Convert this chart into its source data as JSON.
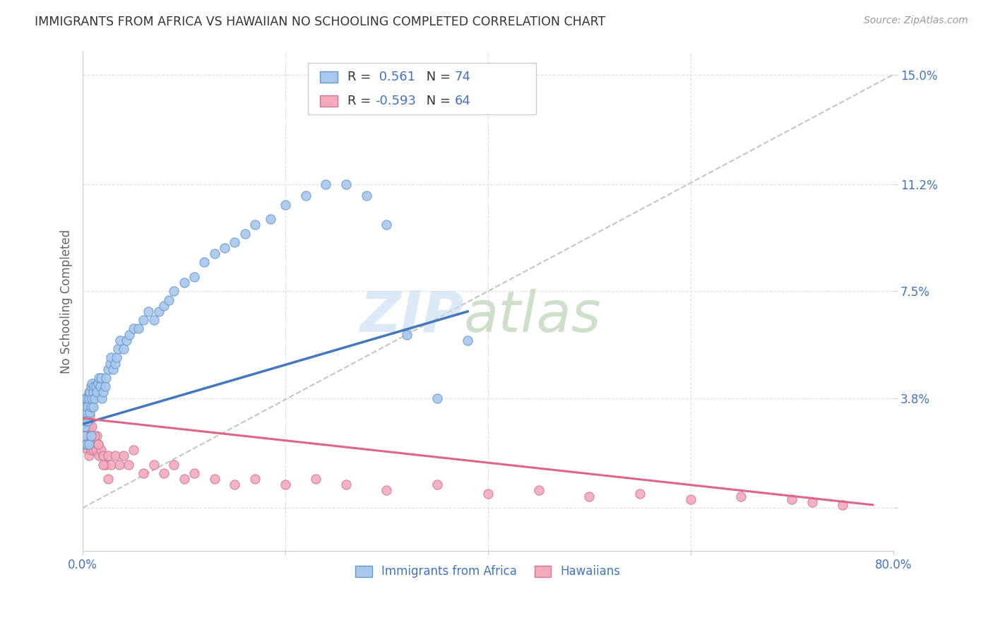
{
  "title": "IMMIGRANTS FROM AFRICA VS HAWAIIAN NO SCHOOLING COMPLETED CORRELATION CHART",
  "source": "Source: ZipAtlas.com",
  "ylabel": "No Schooling Completed",
  "legend_africa": "Immigrants from Africa",
  "legend_hawaii": "Hawaiians",
  "R_africa": 0.561,
  "N_africa": 74,
  "R_hawaii": -0.593,
  "N_hawaii": 64,
  "color_africa_fill": "#A8C8EE",
  "color_africa_edge": "#6699CC",
  "color_hawaii_fill": "#F4AABB",
  "color_hawaii_edge": "#CC7799",
  "color_africa_line": "#4477BB",
  "color_hawaii_line": "#DD6688",
  "color_dashed": "#BBBBBB",
  "color_tick": "#4472C4",
  "xlim": [
    0.0,
    0.8
  ],
  "ylim": [
    -0.015,
    0.158
  ],
  "ytick_vals": [
    0.0,
    0.038,
    0.075,
    0.112,
    0.15
  ],
  "ytick_labels": [
    "",
    "3.8%",
    "7.5%",
    "11.2%",
    "15.0%"
  ],
  "xtick_vals": [
    0.0,
    0.2,
    0.4,
    0.6,
    0.8
  ],
  "xtick_labels": [
    "0.0%",
    "",
    "",
    "",
    "80.0%"
  ],
  "africa_x": [
    0.001,
    0.002,
    0.002,
    0.003,
    0.003,
    0.003,
    0.004,
    0.004,
    0.005,
    0.005,
    0.006,
    0.006,
    0.007,
    0.007,
    0.008,
    0.008,
    0.009,
    0.009,
    0.01,
    0.01,
    0.011,
    0.012,
    0.013,
    0.014,
    0.015,
    0.016,
    0.017,
    0.018,
    0.019,
    0.02,
    0.022,
    0.023,
    0.025,
    0.027,
    0.028,
    0.03,
    0.032,
    0.033,
    0.035,
    0.037,
    0.04,
    0.043,
    0.046,
    0.05,
    0.055,
    0.06,
    0.065,
    0.07,
    0.075,
    0.08,
    0.085,
    0.09,
    0.1,
    0.11,
    0.12,
    0.13,
    0.14,
    0.15,
    0.16,
    0.17,
    0.185,
    0.2,
    0.22,
    0.24,
    0.26,
    0.28,
    0.3,
    0.32,
    0.35,
    0.38,
    0.002,
    0.004,
    0.006,
    0.008
  ],
  "africa_y": [
    0.025,
    0.028,
    0.032,
    0.03,
    0.035,
    0.038,
    0.033,
    0.038,
    0.03,
    0.035,
    0.04,
    0.038,
    0.033,
    0.04,
    0.035,
    0.042,
    0.038,
    0.043,
    0.035,
    0.04,
    0.042,
    0.038,
    0.042,
    0.04,
    0.043,
    0.045,
    0.042,
    0.045,
    0.038,
    0.04,
    0.042,
    0.045,
    0.048,
    0.05,
    0.052,
    0.048,
    0.05,
    0.052,
    0.055,
    0.058,
    0.055,
    0.058,
    0.06,
    0.062,
    0.062,
    0.065,
    0.068,
    0.065,
    0.068,
    0.07,
    0.072,
    0.075,
    0.078,
    0.08,
    0.085,
    0.088,
    0.09,
    0.092,
    0.095,
    0.098,
    0.1,
    0.105,
    0.108,
    0.112,
    0.112,
    0.108,
    0.098,
    0.06,
    0.038,
    0.058,
    0.022,
    0.022,
    0.022,
    0.025
  ],
  "hawaii_x": [
    0.001,
    0.002,
    0.002,
    0.003,
    0.003,
    0.004,
    0.004,
    0.005,
    0.005,
    0.006,
    0.006,
    0.007,
    0.007,
    0.008,
    0.008,
    0.009,
    0.01,
    0.011,
    0.012,
    0.013,
    0.014,
    0.015,
    0.016,
    0.018,
    0.02,
    0.022,
    0.025,
    0.028,
    0.032,
    0.036,
    0.04,
    0.045,
    0.05,
    0.06,
    0.07,
    0.08,
    0.09,
    0.1,
    0.11,
    0.13,
    0.15,
    0.17,
    0.2,
    0.23,
    0.26,
    0.3,
    0.35,
    0.4,
    0.45,
    0.5,
    0.55,
    0.6,
    0.65,
    0.7,
    0.72,
    0.75,
    0.003,
    0.005,
    0.007,
    0.009,
    0.012,
    0.015,
    0.02,
    0.025
  ],
  "hawaii_y": [
    0.03,
    0.032,
    0.028,
    0.035,
    0.025,
    0.03,
    0.022,
    0.028,
    0.02,
    0.025,
    0.018,
    0.022,
    0.028,
    0.02,
    0.025,
    0.022,
    0.02,
    0.025,
    0.022,
    0.02,
    0.025,
    0.022,
    0.018,
    0.02,
    0.018,
    0.015,
    0.018,
    0.015,
    0.018,
    0.015,
    0.018,
    0.015,
    0.02,
    0.012,
    0.015,
    0.012,
    0.015,
    0.01,
    0.012,
    0.01,
    0.008,
    0.01,
    0.008,
    0.01,
    0.008,
    0.006,
    0.008,
    0.005,
    0.006,
    0.004,
    0.005,
    0.003,
    0.004,
    0.003,
    0.002,
    0.001,
    0.038,
    0.035,
    0.032,
    0.028,
    0.025,
    0.022,
    0.015,
    0.01
  ]
}
